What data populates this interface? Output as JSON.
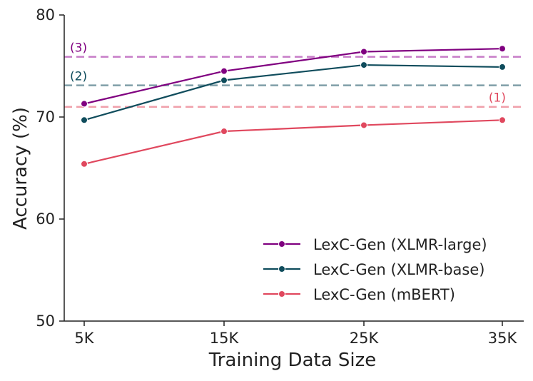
{
  "chart_data": {
    "type": "line",
    "title": "",
    "xlabel": "Training Data Size",
    "ylabel": "Accuracy (%)",
    "categories": [
      "5K",
      "15K",
      "25K",
      "35K"
    ],
    "ylim": [
      50,
      80
    ],
    "yticks": [
      50,
      60,
      70,
      80
    ],
    "grid": false,
    "legend_position": "bottom-right",
    "series": [
      {
        "name": "LexC-Gen (XLMR-large)",
        "color": "#800080",
        "values": [
          71.3,
          74.5,
          76.4,
          76.7
        ]
      },
      {
        "name": "LexC-Gen (XLMR-base)",
        "color": "#0f4c5c",
        "values": [
          69.7,
          73.6,
          75.1,
          74.9
        ]
      },
      {
        "name": "LexC-Gen (mBERT)",
        "color": "#e0485e",
        "values": [
          65.4,
          68.6,
          69.2,
          69.7
        ]
      }
    ],
    "reference_lines": [
      {
        "label": "(3)",
        "value": 75.9,
        "color": "#c77dc8",
        "label_color": "#800080",
        "label_side": "left"
      },
      {
        "label": "(2)",
        "value": 73.1,
        "color": "#7f9fa8",
        "label_color": "#0f4c5c",
        "label_side": "left"
      },
      {
        "label": "(1)",
        "value": 71.0,
        "color": "#f0a0ab",
        "label_color": "#e0485e",
        "label_side": "right"
      }
    ]
  }
}
